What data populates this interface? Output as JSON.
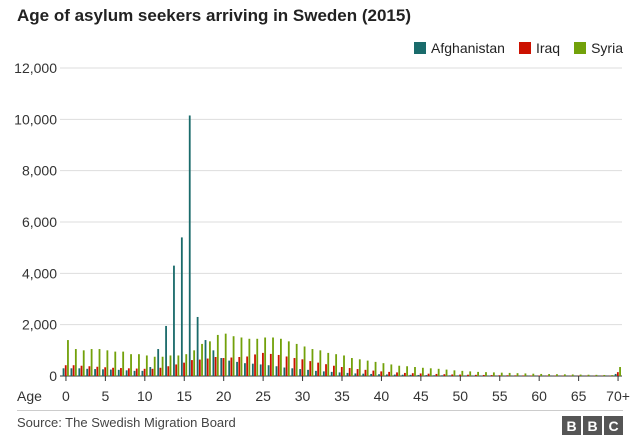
{
  "chart_data": {
    "type": "bar",
    "title": "Age of asylum seekers arriving in Sweden (2015)",
    "xlabel": "Age",
    "ylabel": "",
    "ylim": [
      0,
      12000
    ],
    "yticks": [
      0,
      2000,
      4000,
      6000,
      8000,
      10000,
      12000
    ],
    "ytick_labels": [
      "0",
      "2,000",
      "4,000",
      "6,000",
      "8,000",
      "10,000",
      "12,000"
    ],
    "xtick_labels": [
      "0",
      "5",
      "10",
      "15",
      "20",
      "25",
      "30",
      "35",
      "40",
      "45",
      "50",
      "55",
      "60",
      "65",
      "70+"
    ],
    "xtick_ages": [
      0,
      5,
      10,
      15,
      20,
      25,
      30,
      35,
      40,
      45,
      50,
      55,
      60,
      65,
      70
    ],
    "grid": true,
    "legend_position": "top-right",
    "series": [
      {
        "name": "Afghanistan",
        "color": "#1a6b6b",
        "values": [
          300,
          300,
          300,
          280,
          270,
          260,
          250,
          240,
          220,
          200,
          200,
          350,
          1050,
          1950,
          4300,
          5400,
          10150,
          2300,
          1400,
          1000,
          700,
          600,
          550,
          500,
          480,
          450,
          420,
          380,
          330,
          300,
          270,
          240,
          200,
          180,
          160,
          140,
          120,
          100,
          90,
          80,
          70,
          60,
          55,
          50,
          45,
          40,
          35,
          30,
          28,
          26,
          24,
          22,
          20,
          18,
          16,
          14,
          12,
          12,
          10,
          10,
          9,
          8,
          8,
          7,
          7,
          6,
          6,
          5,
          5,
          5,
          80
        ]
      },
      {
        "name": "Iraq",
        "color": "#cc1100",
        "values": [
          420,
          420,
          400,
          380,
          360,
          340,
          320,
          310,
          300,
          290,
          280,
          280,
          320,
          380,
          450,
          520,
          620,
          640,
          680,
          740,
          700,
          720,
          740,
          760,
          840,
          900,
          860,
          820,
          760,
          700,
          650,
          580,
          520,
          460,
          400,
          350,
          310,
          270,
          240,
          210,
          180,
          160,
          140,
          120,
          110,
          100,
          90,
          80,
          70,
          60,
          55,
          50,
          45,
          40,
          35,
          30,
          28,
          25,
          22,
          20,
          18,
          16,
          15,
          14,
          13,
          12,
          11,
          10,
          10,
          9,
          150
        ]
      },
      {
        "name": "Syria",
        "color": "#72a10a",
        "values": [
          1400,
          1050,
          1000,
          1050,
          1050,
          1000,
          950,
          950,
          850,
          850,
          800,
          750,
          750,
          800,
          800,
          850,
          1000,
          1250,
          1350,
          1600,
          1650,
          1550,
          1500,
          1450,
          1450,
          1500,
          1500,
          1450,
          1350,
          1250,
          1150,
          1050,
          1000,
          900,
          850,
          800,
          700,
          650,
          600,
          550,
          500,
          450,
          400,
          380,
          350,
          320,
          300,
          280,
          250,
          220,
          200,
          180,
          160,
          150,
          140,
          130,
          120,
          110,
          100,
          90,
          80,
          75,
          70,
          65,
          60,
          55,
          50,
          45,
          40,
          35,
          350
        ]
      }
    ]
  },
  "footer": {
    "source": "Source: The Swedish Migration Board",
    "logo_letters": [
      "B",
      "B",
      "C"
    ]
  }
}
